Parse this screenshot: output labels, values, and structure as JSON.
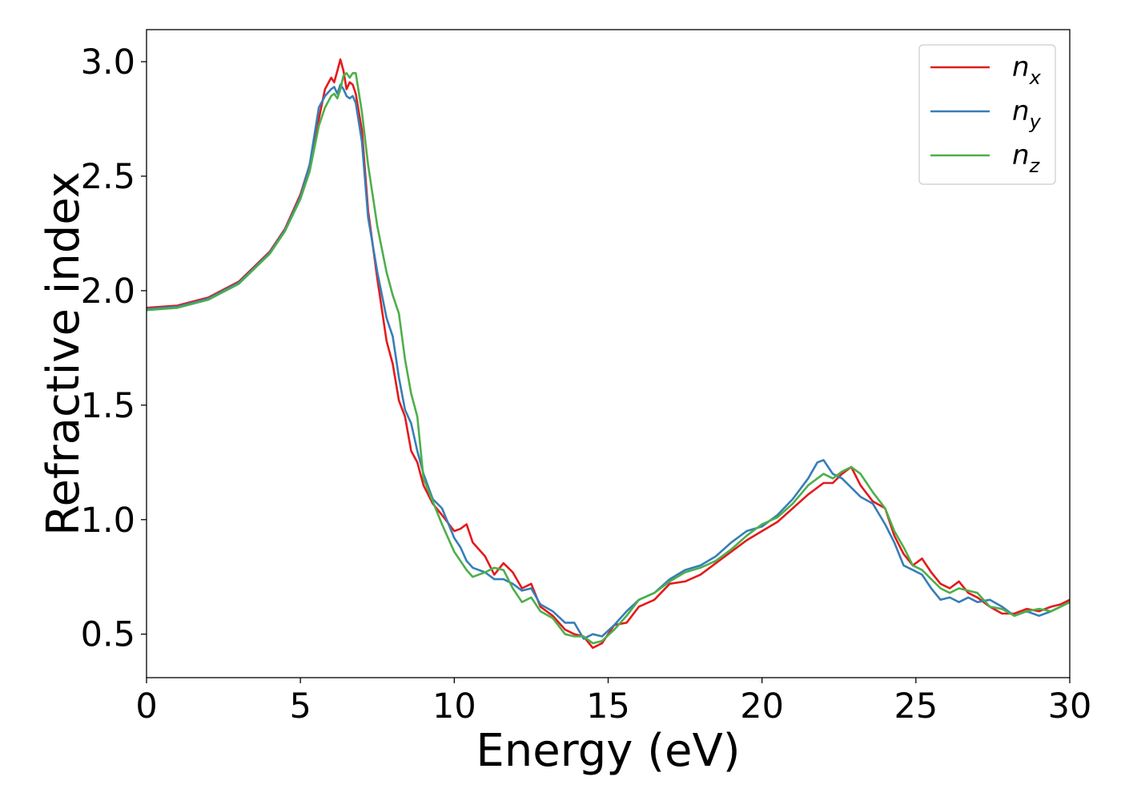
{
  "chart_data": {
    "type": "line",
    "title": "",
    "xlabel": "Energy (eV)",
    "ylabel": "Refractive index",
    "xlim": [
      0,
      30
    ],
    "ylim": [
      0.31,
      3.14
    ],
    "xticks": [
      0,
      5,
      10,
      15,
      20,
      25,
      30
    ],
    "xtick_labels": [
      "0",
      "5",
      "10",
      "15",
      "20",
      "25",
      "30"
    ],
    "yticks": [
      0.5,
      1.0,
      1.5,
      2.0,
      2.5,
      3.0
    ],
    "ytick_labels": [
      "0.5",
      "1.0",
      "1.5",
      "2.0",
      "2.5",
      "3.0"
    ],
    "grid": false,
    "legend_position": "top-right",
    "series": [
      {
        "name": "n_x",
        "base": "n",
        "sub": "x",
        "color": "#e41a1c",
        "x": [
          0,
          1,
          2,
          3,
          4,
          4.5,
          5,
          5.3,
          5.6,
          5.8,
          6.0,
          6.1,
          6.2,
          6.3,
          6.4,
          6.5,
          6.6,
          6.7,
          6.8,
          7.0,
          7.2,
          7.5,
          7.8,
          8.0,
          8.2,
          8.4,
          8.6,
          8.8,
          9.0,
          9.3,
          9.6,
          10.0,
          10.2,
          10.4,
          10.6,
          11.0,
          11.3,
          11.6,
          11.9,
          12.2,
          12.5,
          12.8,
          13.2,
          13.6,
          13.9,
          14.2,
          14.5,
          14.8,
          15.2,
          15.6,
          16.0,
          16.5,
          17.0,
          17.5,
          18.0,
          18.5,
          19.0,
          19.5,
          20.0,
          20.5,
          21.0,
          21.5,
          22.0,
          22.3,
          22.6,
          22.9,
          23.2,
          23.6,
          24.0,
          24.3,
          24.6,
          24.9,
          25.2,
          25.5,
          25.8,
          26.1,
          26.4,
          26.7,
          27.0,
          27.4,
          27.8,
          28.2,
          28.6,
          29.0,
          29.4,
          29.7,
          30.0
        ],
        "y": [
          1.925,
          1.935,
          1.97,
          2.04,
          2.17,
          2.27,
          2.42,
          2.55,
          2.75,
          2.88,
          2.93,
          2.91,
          2.96,
          3.01,
          2.96,
          2.88,
          2.91,
          2.9,
          2.86,
          2.7,
          2.35,
          2.05,
          1.78,
          1.68,
          1.52,
          1.45,
          1.3,
          1.25,
          1.15,
          1.07,
          1.02,
          0.95,
          0.96,
          0.98,
          0.9,
          0.84,
          0.76,
          0.81,
          0.77,
          0.7,
          0.72,
          0.62,
          0.58,
          0.52,
          0.5,
          0.49,
          0.44,
          0.46,
          0.54,
          0.55,
          0.62,
          0.65,
          0.72,
          0.73,
          0.76,
          0.81,
          0.86,
          0.91,
          0.95,
          0.99,
          1.05,
          1.11,
          1.16,
          1.16,
          1.2,
          1.23,
          1.15,
          1.08,
          1.05,
          0.93,
          0.85,
          0.8,
          0.83,
          0.77,
          0.72,
          0.7,
          0.73,
          0.68,
          0.66,
          0.62,
          0.59,
          0.59,
          0.61,
          0.6,
          0.62,
          0.63,
          0.65
        ]
      },
      {
        "name": "n_y",
        "base": "n",
        "sub": "y",
        "color": "#377eb8",
        "x": [
          0,
          1,
          2,
          3,
          4,
          4.5,
          5,
          5.3,
          5.6,
          5.8,
          6.0,
          6.1,
          6.2,
          6.3,
          6.4,
          6.5,
          6.6,
          6.7,
          6.8,
          7.0,
          7.2,
          7.5,
          7.8,
          8.0,
          8.2,
          8.4,
          8.6,
          8.8,
          9.0,
          9.3,
          9.6,
          10.0,
          10.2,
          10.4,
          10.6,
          11.0,
          11.3,
          11.6,
          11.9,
          12.2,
          12.5,
          12.8,
          13.2,
          13.6,
          13.9,
          14.2,
          14.5,
          14.8,
          15.2,
          15.6,
          16.0,
          16.5,
          17.0,
          17.5,
          18.0,
          18.5,
          19.0,
          19.5,
          20.0,
          20.5,
          21.0,
          21.5,
          21.8,
          22.0,
          22.3,
          22.6,
          22.9,
          23.2,
          23.6,
          24.0,
          24.3,
          24.6,
          24.9,
          25.2,
          25.5,
          25.8,
          26.1,
          26.4,
          26.7,
          27.0,
          27.4,
          27.8,
          28.2,
          28.6,
          29.0,
          29.4,
          29.7,
          30.0
        ],
        "y": [
          1.92,
          1.93,
          1.965,
          2.035,
          2.165,
          2.265,
          2.41,
          2.55,
          2.8,
          2.85,
          2.88,
          2.89,
          2.86,
          2.9,
          2.88,
          2.85,
          2.84,
          2.85,
          2.82,
          2.65,
          2.32,
          2.08,
          1.88,
          1.8,
          1.62,
          1.48,
          1.42,
          1.3,
          1.2,
          1.09,
          1.05,
          0.92,
          0.88,
          0.82,
          0.79,
          0.77,
          0.74,
          0.74,
          0.72,
          0.69,
          0.7,
          0.63,
          0.6,
          0.55,
          0.55,
          0.48,
          0.5,
          0.49,
          0.54,
          0.6,
          0.65,
          0.68,
          0.74,
          0.78,
          0.8,
          0.84,
          0.9,
          0.95,
          0.97,
          1.02,
          1.09,
          1.18,
          1.25,
          1.26,
          1.2,
          1.18,
          1.14,
          1.1,
          1.07,
          0.98,
          0.9,
          0.8,
          0.78,
          0.76,
          0.7,
          0.65,
          0.66,
          0.64,
          0.66,
          0.64,
          0.65,
          0.62,
          0.58,
          0.6,
          0.58,
          0.6,
          0.62,
          0.64
        ]
      },
      {
        "name": "n_z",
        "base": "n",
        "sub": "z",
        "color": "#4daf4a",
        "x": [
          0,
          1,
          2,
          3,
          4,
          4.5,
          5,
          5.3,
          5.6,
          5.8,
          6.0,
          6.1,
          6.2,
          6.3,
          6.4,
          6.5,
          6.6,
          6.7,
          6.8,
          7.0,
          7.2,
          7.5,
          7.8,
          8.0,
          8.2,
          8.4,
          8.6,
          8.8,
          9.0,
          9.3,
          9.6,
          10.0,
          10.2,
          10.4,
          10.6,
          11.0,
          11.3,
          11.6,
          11.9,
          12.2,
          12.5,
          12.8,
          13.2,
          13.6,
          13.9,
          14.2,
          14.5,
          14.8,
          15.2,
          15.6,
          16.0,
          16.5,
          17.0,
          17.5,
          18.0,
          18.5,
          19.0,
          19.5,
          20.0,
          20.5,
          21.0,
          21.5,
          22.0,
          22.3,
          22.6,
          22.9,
          23.2,
          23.6,
          24.0,
          24.3,
          24.6,
          24.9,
          25.2,
          25.5,
          25.8,
          26.1,
          26.4,
          26.7,
          27.0,
          27.4,
          27.8,
          28.2,
          28.6,
          29.0,
          29.4,
          29.7,
          30.0
        ],
        "y": [
          1.915,
          1.925,
          1.96,
          2.03,
          2.16,
          2.26,
          2.4,
          2.52,
          2.72,
          2.8,
          2.85,
          2.86,
          2.84,
          2.88,
          2.94,
          2.95,
          2.93,
          2.95,
          2.95,
          2.78,
          2.55,
          2.28,
          2.08,
          1.98,
          1.9,
          1.7,
          1.55,
          1.45,
          1.18,
          1.08,
          0.98,
          0.86,
          0.82,
          0.78,
          0.75,
          0.77,
          0.79,
          0.78,
          0.7,
          0.64,
          0.66,
          0.6,
          0.57,
          0.5,
          0.49,
          0.49,
          0.46,
          0.47,
          0.52,
          0.58,
          0.65,
          0.68,
          0.73,
          0.77,
          0.79,
          0.82,
          0.87,
          0.93,
          0.98,
          1.01,
          1.07,
          1.15,
          1.2,
          1.18,
          1.21,
          1.23,
          1.2,
          1.12,
          1.05,
          0.95,
          0.88,
          0.8,
          0.78,
          0.74,
          0.7,
          0.68,
          0.7,
          0.69,
          0.68,
          0.62,
          0.61,
          0.58,
          0.6,
          0.61,
          0.6,
          0.62,
          0.64
        ]
      }
    ]
  }
}
